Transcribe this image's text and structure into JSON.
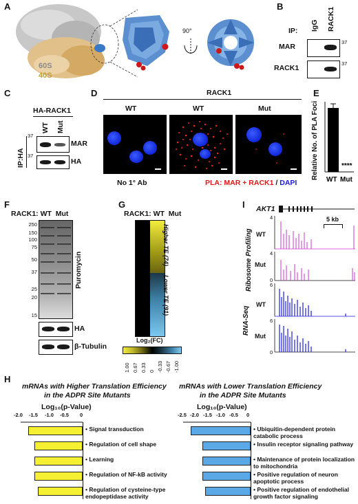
{
  "panel_labels": [
    "A",
    "B",
    "C",
    "D",
    "E",
    "F",
    "G",
    "H",
    "I"
  ],
  "panelA": {
    "label_60s": "60S",
    "label_40s": "40S",
    "rotation": "90°"
  },
  "panelB": {
    "ip_label": "IP:",
    "lanes": [
      "IgG",
      "RACK1"
    ],
    "rows": [
      "MAR",
      "RACK1"
    ],
    "markers": [
      "37",
      "37"
    ]
  },
  "panelC": {
    "header": "HA-RACK1",
    "lanes": [
      "WT",
      "Mut"
    ],
    "rows": [
      "MAR",
      "HA"
    ],
    "side_label": "IP:HA",
    "markers": [
      "37",
      "37"
    ]
  },
  "panelD": {
    "header": "RACK1",
    "columns": [
      "WT",
      "WT",
      "Mut"
    ],
    "footer_left": "No 1° Ab",
    "footer_red": "PLA: MAR + RACK1",
    "footer_sep": " / ",
    "footer_blue": "DAPI"
  },
  "panelE": {
    "ylabel": "Relative No. of PLA Foci",
    "significance": "****",
    "colors": {
      "bar": "#000000"
    },
    "chart_data": {
      "type": "bar",
      "categories": [
        "WT",
        "Mut"
      ],
      "values": [
        0.93,
        0.0
      ],
      "ylim": [
        0,
        1.0
      ],
      "ylabel": "Relative No. of PLA Foci"
    }
  },
  "panelF": {
    "header": "RACK1: WT  Mut",
    "markers": [
      "250",
      "150",
      "100",
      "75",
      "50",
      "37",
      "25",
      "20",
      "15"
    ],
    "rows": [
      "Puromycin",
      "HA",
      "β-Tubulin"
    ]
  },
  "panelG": {
    "header": "RACK1: WT  Mut",
    "higher": "Higher TE (74)",
    "lower": "Lower TE (91)",
    "scale_title": "Log₂(FC)",
    "scale_ticks": [
      "1.00",
      "0.67",
      "0.33",
      "0",
      "-0.33",
      "-0.67",
      "-1.00"
    ],
    "colors": {
      "high": "#e8e23a",
      "low": "#6ec3ee",
      "zero": "#000000"
    }
  },
  "panelI": {
    "gene": "AKT1",
    "scale": "5 kb",
    "group1": "Ribosome Profiling",
    "group2": "RNA-Seq",
    "tracks": [
      {
        "label": "WT",
        "ymax": "4",
        "ymin": ""
      },
      {
        "label": "Mut",
        "ymax": "4",
        "ymin": "0"
      },
      {
        "label": "WT",
        "ymax": "6",
        "ymin": ""
      },
      {
        "label": "Mut",
        "ymax": "6",
        "ymin": "0"
      }
    ],
    "colors": {
      "ribo": "#cc33cc",
      "rna": "#1a1add"
    }
  },
  "panelH": {
    "left": {
      "title_line1": "mRNAs with Higher Translation Efficiency",
      "title_line2": "in the ADPR Site Mutants",
      "axis_label": "Log₁₀(p-Value)",
      "ticks": [
        "-2.0",
        "-1.5",
        "-1.0",
        "-0.5",
        "0"
      ],
      "color": "#f6f032",
      "chart_data": {
        "type": "bar",
        "orientation": "horizontal",
        "categories": [
          "Signal transduction",
          "Regulation of cell shape",
          "Learning",
          "Regulation of NF-kB activity",
          "Regulation of cysteine-type endopeptidase activity"
        ],
        "values": [
          -1.75,
          -1.55,
          -1.55,
          -1.55,
          -1.45
        ],
        "xlim": [
          -2.0,
          0
        ]
      }
    },
    "right": {
      "title_line1": "mRNAs with Lower Translation Efficiency",
      "title_line2": "in the ADPR Site Mutants",
      "axis_label": "Log₁₀(p-Value)",
      "ticks": [
        "-2.5",
        "-2.0",
        "-1.5",
        "-1.0",
        "-0.5",
        "0"
      ],
      "color": "#5aa8e6",
      "chart_data": {
        "type": "bar",
        "orientation": "horizontal",
        "categories": [
          "Ubiquitin-dependent protein catabolic process",
          "Insulin receptor signaling pathway",
          "Maintenance of protein localization to mitochondria",
          "Positive regulation of neuron apoptotic process",
          "Positive regulation of endothelial growth factor signaling"
        ],
        "values": [
          -2.3,
          -1.85,
          -1.85,
          -1.85,
          -1.75
        ],
        "xlim": [
          -2.5,
          0
        ]
      }
    }
  }
}
